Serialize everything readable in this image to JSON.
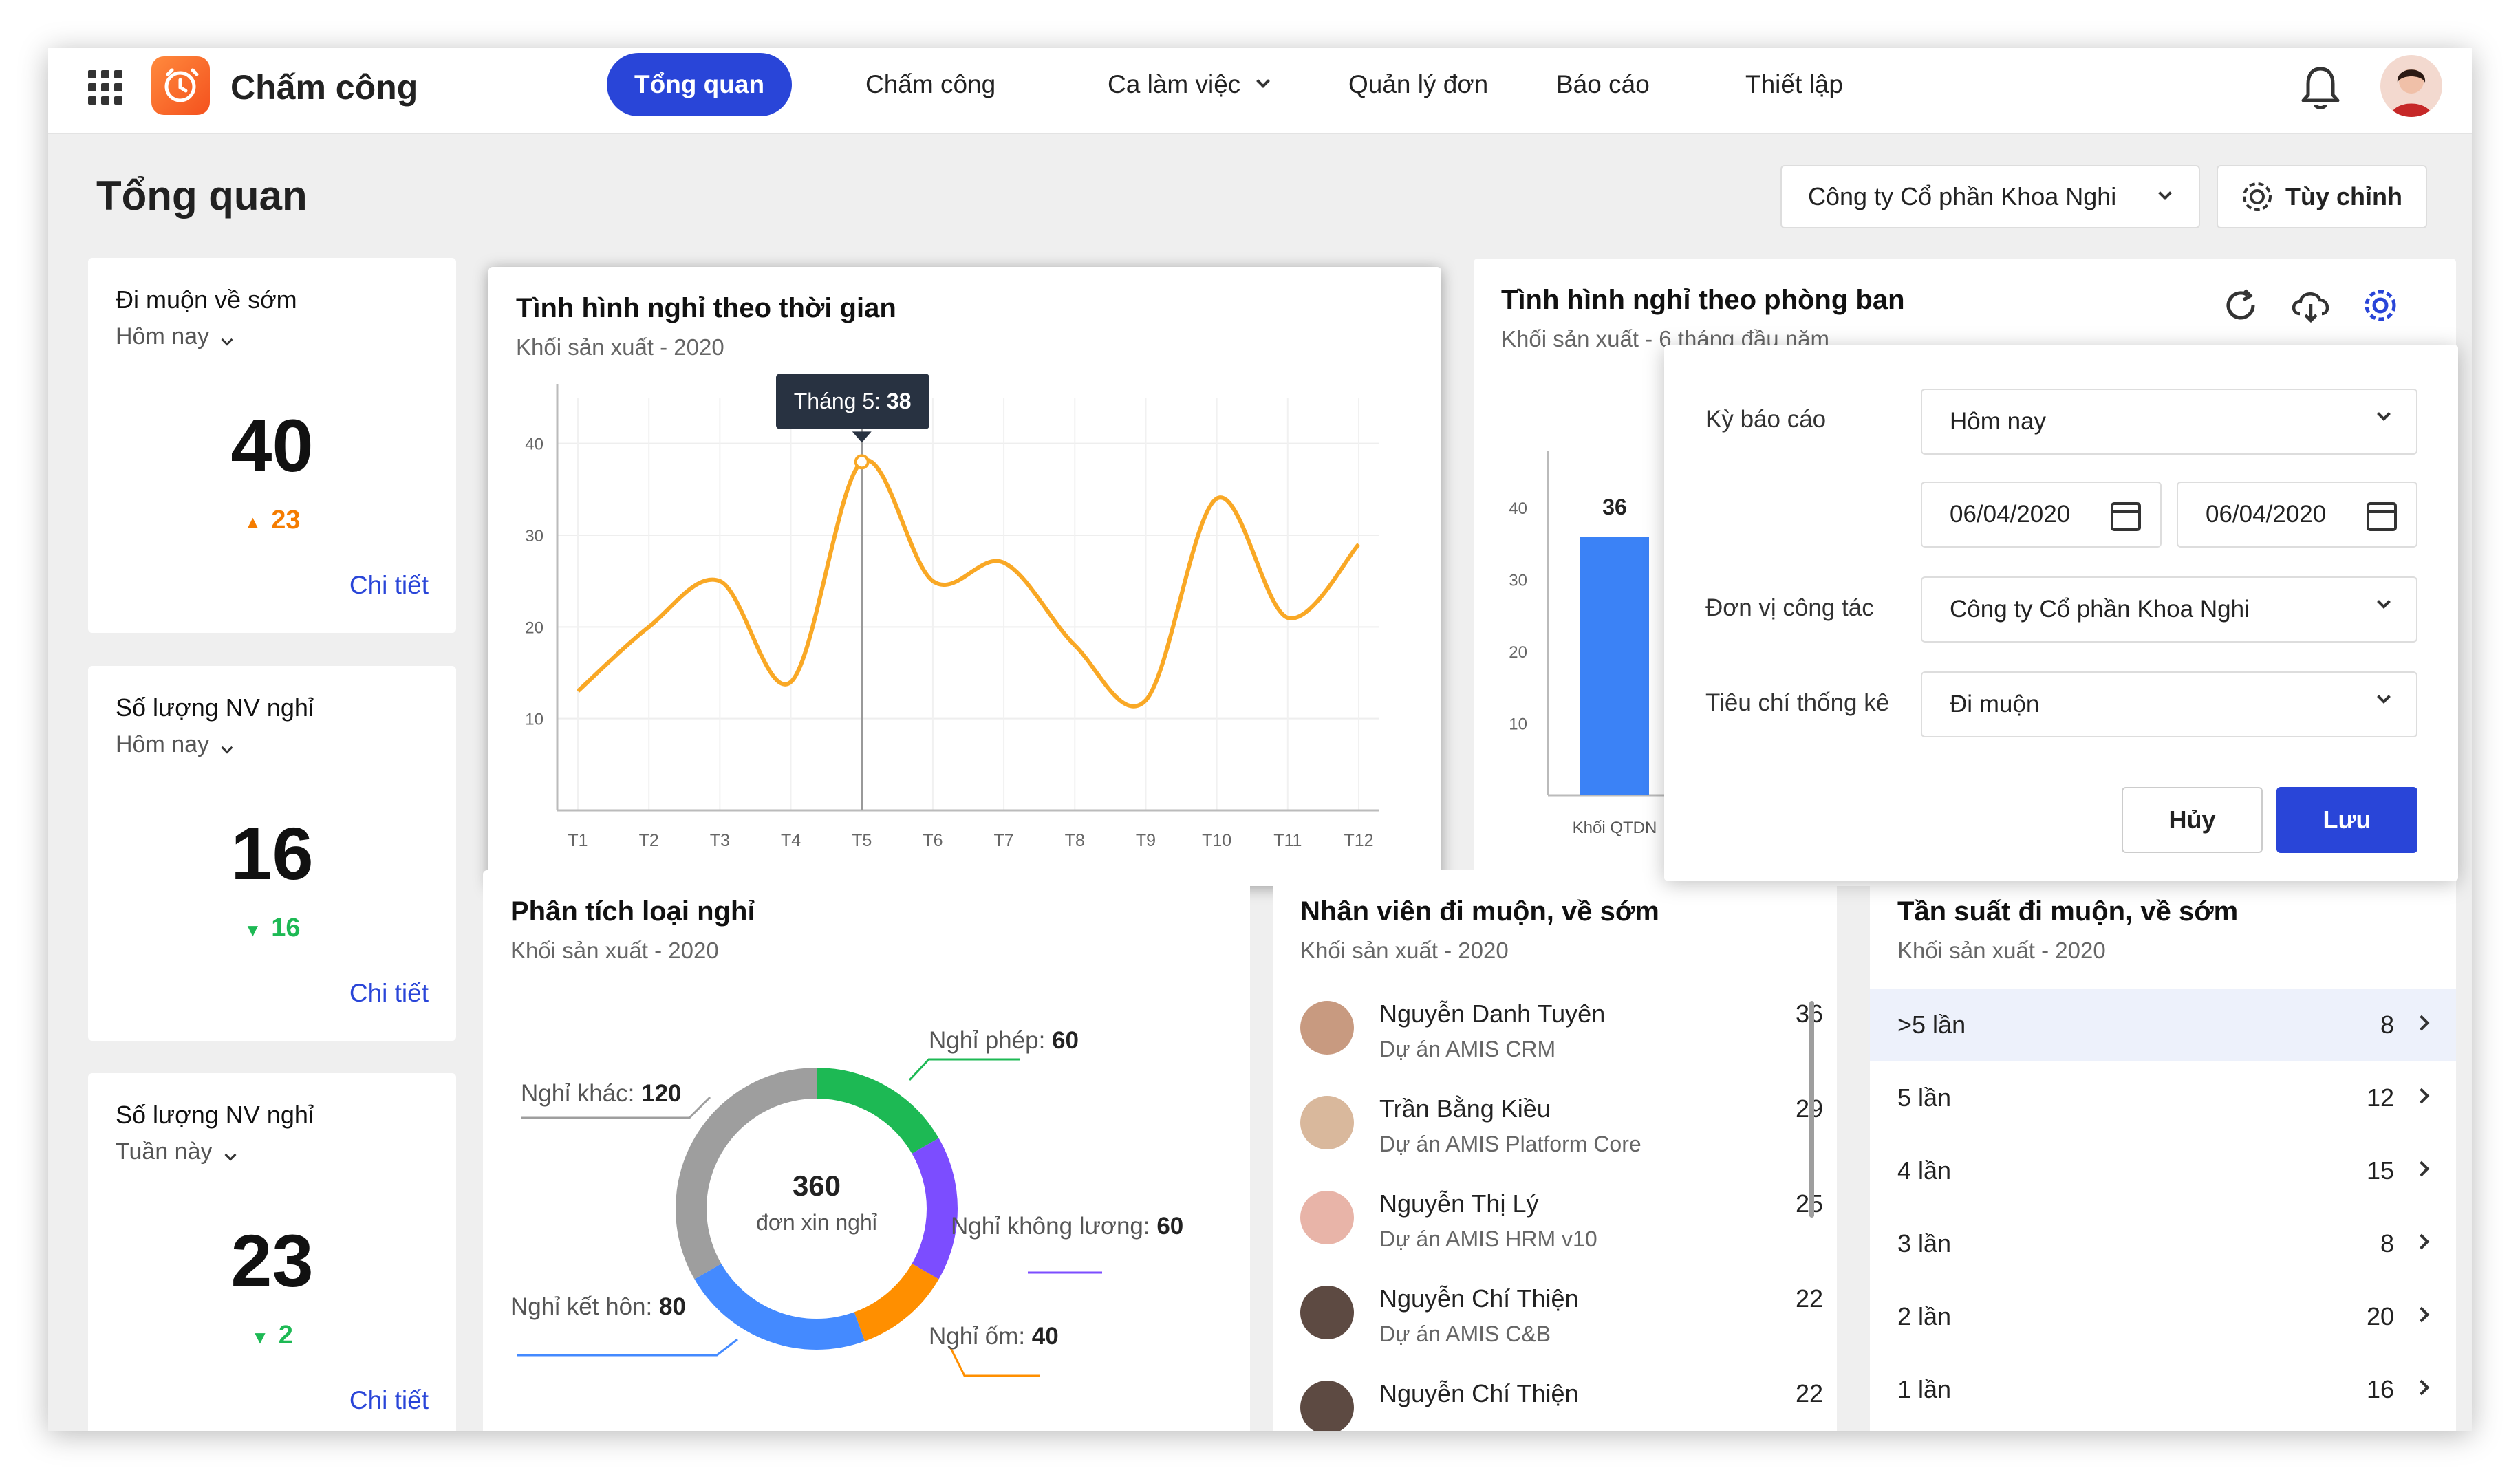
{
  "topbar": {
    "app_title": "Chấm công",
    "nav": [
      "Tổng quan",
      "Chấm công",
      "Ca làm việc",
      "Quản lý đơn",
      "Báo cáo",
      "Thiết lập"
    ]
  },
  "page": {
    "title": "Tổng quan",
    "company_select": "Công ty Cổ phần Khoa Nghi",
    "customize_label": "Tùy chỉnh"
  },
  "stats": [
    {
      "title": "Đi muộn về sớm",
      "period": "Hôm nay",
      "value": "40",
      "delta": "23",
      "trend": "up",
      "link": "Chi tiết"
    },
    {
      "title": "Số lượng NV nghỉ",
      "period": "Hôm nay",
      "value": "16",
      "delta": "16",
      "trend": "down",
      "link": "Chi tiết"
    },
    {
      "title": "Số lượng NV nghỉ",
      "period": "Tuần này",
      "value": "23",
      "delta": "2",
      "trend": "down",
      "link": "Chi tiết"
    }
  ],
  "line_card": {
    "title": "Tình hình nghỉ theo thời gian",
    "subtitle": "Khối sản xuất - 2020",
    "tooltip_label": "Tháng 5:",
    "tooltip_value": "38"
  },
  "dept_card": {
    "title": "Tình hình nghỉ theo phòng ban",
    "subtitle": "Khối sản xuất - 6 tháng đầu năm",
    "bar_value": "36",
    "bar_label": "Khối QTDN"
  },
  "donut_card": {
    "title": "Phân tích loại nghỉ",
    "subtitle": "Khối sản xuất - 2020",
    "center_value": "360",
    "center_label": "đơn xin nghỉ",
    "labels": [
      {
        "name": "Nghỉ phép:",
        "value": "60"
      },
      {
        "name": "Nghỉ không lương:",
        "value": "60"
      },
      {
        "name": "Nghỉ ốm:",
        "value": "40"
      },
      {
        "name": "Nghỉ kết hôn:",
        "value": "80"
      },
      {
        "name": "Nghỉ khác:",
        "value": "120"
      }
    ]
  },
  "emp_card": {
    "title": "Nhân viên đi muộn, về sớm",
    "subtitle": "Khối sản xuất - 2020",
    "rows": [
      {
        "name": "Nguyễn Danh Tuyên",
        "project": "Dự án AMIS CRM",
        "count": "36"
      },
      {
        "name": "Trần Bằng Kiều",
        "project": "Dự án AMIS Platform Core",
        "count": "29"
      },
      {
        "name": "Nguyễn Thị Lý",
        "project": "Dự án AMIS HRM v10",
        "count": "25"
      },
      {
        "name": "Nguyễn Chí Thiện",
        "project": "Dự án AMIS C&B",
        "count": "22"
      },
      {
        "name": "Nguyễn Chí Thiện",
        "project": "",
        "count": "22"
      }
    ]
  },
  "freq_card": {
    "title": "Tần suất đi muộn, về sớm",
    "subtitle": "Khối sản xuất - 2020",
    "rows": [
      {
        "label": ">5 lần",
        "value": "8"
      },
      {
        "label": "5 lần",
        "value": "12"
      },
      {
        "label": "4 lần",
        "value": "15"
      },
      {
        "label": "3 lần",
        "value": "8"
      },
      {
        "label": "2 lần",
        "value": "20"
      },
      {
        "label": "1 lần",
        "value": "16"
      }
    ]
  },
  "popup": {
    "period_label": "Kỳ báo cáo",
    "period_value": "Hôm nay",
    "date_from": "06/04/2020",
    "date_to": "06/04/2020",
    "unit_label": "Đơn vị công tác",
    "unit_value": "Công ty Cổ phần Khoa Nghi",
    "criteria_label": "Tiêu chí thống kê",
    "criteria_value": "Đi muộn",
    "cancel_label": "Hủy",
    "save_label": "Lưu"
  },
  "colors": {
    "accent": "#2945d8",
    "line": "#f9a825",
    "up": "#f57c00",
    "down": "#1db954"
  },
  "chart_data": [
    {
      "type": "line",
      "title": "Tình hình nghỉ theo thời gian",
      "x": [
        "T1",
        "T2",
        "T3",
        "T4",
        "T5",
        "T6",
        "T7",
        "T8",
        "T9",
        "T10",
        "T11",
        "T12"
      ],
      "series": [
        {
          "values": [
            13,
            20,
            25,
            14,
            38,
            25,
            27,
            18,
            12,
            34,
            21,
            29
          ]
        }
      ],
      "ylim": [
        0,
        45
      ],
      "yticks": [
        10,
        20,
        30,
        40
      ],
      "grid": true
    },
    {
      "type": "bar",
      "title": "Tình hình nghỉ theo phòng ban",
      "categories": [
        "Khối QTDN"
      ],
      "values": [
        36
      ],
      "ylim": [
        0,
        45
      ],
      "yticks": [
        10,
        20,
        30,
        40
      ]
    },
    {
      "type": "pie",
      "title": "Phân tích loại nghỉ",
      "categories": [
        "Nghỉ phép",
        "Nghỉ không lương",
        "Nghỉ ốm",
        "Nghỉ kết hôn",
        "Nghỉ khác"
      ],
      "values": [
        60,
        60,
        40,
        80,
        120
      ],
      "colors": [
        "#1db954",
        "#7c4dff",
        "#ff8f00",
        "#448aff",
        "#9e9e9e"
      ],
      "total": 360
    }
  ]
}
